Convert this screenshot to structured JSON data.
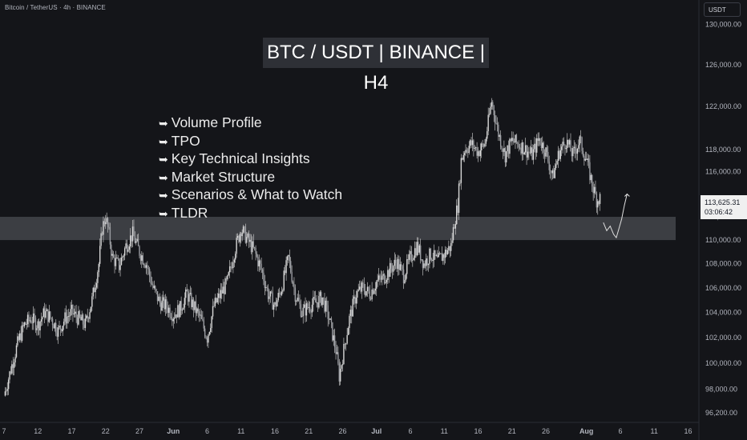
{
  "symbol_title": "Bitcoin / TetherUS · 4h · BINANCE",
  "currency": "USDT",
  "headline": "BTC / USDT | BINANCE | H4",
  "topics": [
    "Volume Profile",
    "TPO",
    "Key Technical Insights",
    "Market Structure",
    "Scenarios & What to Watch",
    "TLDR"
  ],
  "topic_arrow": "➥",
  "last_price": "113,625.31",
  "countdown": "03:06:42",
  "colors": {
    "background": "#141519",
    "candles": "#d8d8d8",
    "zone": "#4a4c52",
    "axis_text": "#b2b5be",
    "price_tag_bg": "#f0f0f0"
  },
  "chart_data": {
    "type": "candlestick",
    "y_scale": "log",
    "ylim": [
      95500,
      132500
    ],
    "y_ticks": [
      130000,
      126000,
      122000,
      118000,
      116000,
      112000,
      110000,
      108000,
      106000,
      104000,
      102000,
      100000,
      98000,
      96200
    ],
    "y_tick_labels": [
      "130,000.00",
      "126,000.00",
      "122,000.00",
      "118,000.00",
      "116,000.00",
      "112,000.00",
      "110,000.00",
      "108,000.00",
      "106,000.00",
      "104,000.00",
      "102,000.00",
      "100,000.00",
      "98,000.00",
      "96,200.00"
    ],
    "x_tick_labels": [
      "7",
      "12",
      "17",
      "22",
      "27",
      "Jun",
      "6",
      "11",
      "16",
      "21",
      "26",
      "Jul",
      "6",
      "11",
      "16",
      "21",
      "26",
      "Aug",
      "6",
      "11",
      "16"
    ],
    "x_tick_days": [
      0,
      5,
      10,
      15,
      20,
      25,
      30,
      35,
      40,
      45,
      50,
      55,
      60,
      65,
      70,
      75,
      80,
      86,
      91,
      96,
      101
    ],
    "zone": {
      "low": 110000,
      "high": 112000
    },
    "last_price": 113625.31,
    "price_path": [
      [
        0,
        97500
      ],
      [
        1,
        99500
      ],
      [
        2,
        101500
      ],
      [
        3,
        103000
      ],
      [
        4,
        103500
      ],
      [
        5,
        103000
      ],
      [
        6,
        104000
      ],
      [
        7,
        103500
      ],
      [
        8,
        102500
      ],
      [
        9,
        103500
      ],
      [
        10,
        104000
      ],
      [
        11,
        103500
      ],
      [
        12,
        103000
      ],
      [
        13,
        105000
      ],
      [
        14,
        108000
      ],
      [
        14.5,
        111000
      ],
      [
        15,
        112000
      ],
      [
        15.5,
        110500
      ],
      [
        16,
        108500
      ],
      [
        17,
        107800
      ],
      [
        18,
        109500
      ],
      [
        19,
        110500
      ],
      [
        20,
        109000
      ],
      [
        21,
        108000
      ],
      [
        22,
        106000
      ],
      [
        23,
        104800
      ],
      [
        24,
        104500
      ],
      [
        25,
        103800
      ],
      [
        26,
        104300
      ],
      [
        27,
        105500
      ],
      [
        28,
        104500
      ],
      [
        29,
        103500
      ],
      [
        30,
        102000
      ],
      [
        31,
        104500
      ],
      [
        32,
        105500
      ],
      [
        33,
        106500
      ],
      [
        34,
        109000
      ],
      [
        35,
        111000
      ],
      [
        36,
        110000
      ],
      [
        37,
        109000
      ],
      [
        38,
        107500
      ],
      [
        39,
        105500
      ],
      [
        40,
        104500
      ],
      [
        41,
        106000
      ],
      [
        42,
        108500
      ],
      [
        43,
        105500
      ],
      [
        44,
        104000
      ],
      [
        45,
        104500
      ],
      [
        46,
        104800
      ],
      [
        47,
        105200
      ],
      [
        48,
        103500
      ],
      [
        49,
        101000
      ],
      [
        49.5,
        99000
      ],
      [
        50,
        100500
      ],
      [
        51,
        103500
      ],
      [
        52,
        105500
      ],
      [
        53,
        106000
      ],
      [
        54,
        105500
      ],
      [
        55,
        106500
      ],
      [
        56,
        106800
      ],
      [
        57,
        107500
      ],
      [
        58,
        108200
      ],
      [
        59,
        107000
      ],
      [
        60,
        108500
      ],
      [
        61,
        109500
      ],
      [
        62,
        108000
      ],
      [
        63,
        108800
      ],
      [
        64,
        108200
      ],
      [
        65,
        108800
      ],
      [
        66,
        109500
      ],
      [
        66.5,
        111500
      ],
      [
        67,
        113000
      ],
      [
        67.5,
        117000
      ],
      [
        68,
        118000
      ],
      [
        69,
        118500
      ],
      [
        70,
        117800
      ],
      [
        71,
        118500
      ],
      [
        72,
        122500
      ],
      [
        73,
        119500
      ],
      [
        74,
        117500
      ],
      [
        75,
        118800
      ],
      [
        76,
        118500
      ],
      [
        77,
        118000
      ],
      [
        78,
        117500
      ],
      [
        79,
        119000
      ],
      [
        80,
        117800
      ],
      [
        81,
        115500
      ],
      [
        82,
        117800
      ],
      [
        83,
        118800
      ],
      [
        84,
        117500
      ],
      [
        85,
        118800
      ],
      [
        86,
        117000
      ],
      [
        87,
        114500
      ],
      [
        87.5,
        113500
      ],
      [
        88,
        113625.31
      ]
    ],
    "projection_path": [
      [
        88.5,
        111500
      ],
      [
        89,
        110800
      ],
      [
        89.5,
        111200
      ],
      [
        90,
        110500
      ],
      [
        90.4,
        110200
      ],
      [
        90.8,
        111000
      ],
      [
        91.2,
        111800
      ],
      [
        91.6,
        113000
      ],
      [
        92,
        114000
      ]
    ]
  }
}
